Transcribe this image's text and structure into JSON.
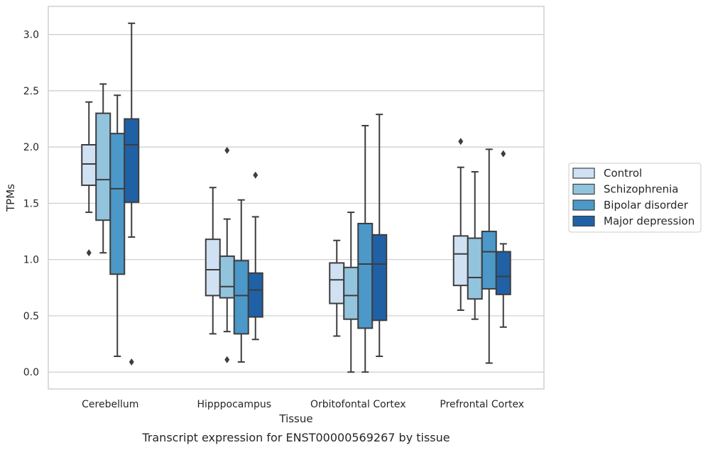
{
  "chart_data": {
    "type": "box",
    "caption": "Transcript expression for ENST00000569267 by tissue",
    "xlabel": "Tissue",
    "ylabel": "TPMs",
    "ylim": [
      -0.15,
      3.25
    ],
    "yticks": [
      "0.0",
      "0.5",
      "1.0",
      "1.5",
      "2.0",
      "2.5",
      "3.0"
    ],
    "grid": "horizontal",
    "legend_position": "right",
    "categories": [
      "Cerebellum",
      "Hipppocampus",
      "Orbitofontal Cortex",
      "Prefrontal Cortex"
    ],
    "series": [
      {
        "name": "Control",
        "color": "#cfe1f2",
        "boxes": [
          {
            "whisker_low": 1.42,
            "q1": 1.66,
            "median": 1.85,
            "q3": 2.02,
            "whisker_high": 2.4,
            "outliers": [
              1.06
            ]
          },
          {
            "whisker_low": 0.34,
            "q1": 0.68,
            "median": 0.91,
            "q3": 1.18,
            "whisker_high": 1.64,
            "outliers": []
          },
          {
            "whisker_low": 0.32,
            "q1": 0.61,
            "median": 0.82,
            "q3": 0.97,
            "whisker_high": 1.17,
            "outliers": []
          },
          {
            "whisker_low": 0.55,
            "q1": 0.77,
            "median": 1.05,
            "q3": 1.21,
            "whisker_high": 1.82,
            "outliers": [
              2.05
            ]
          }
        ]
      },
      {
        "name": "Schizophrenia",
        "color": "#93c4de",
        "boxes": [
          {
            "whisker_low": 1.06,
            "q1": 1.35,
            "median": 1.71,
            "q3": 2.3,
            "whisker_high": 2.56,
            "outliers": []
          },
          {
            "whisker_low": 0.36,
            "q1": 0.66,
            "median": 0.76,
            "q3": 1.03,
            "whisker_high": 1.36,
            "outliers": [
              1.97,
              0.11
            ]
          },
          {
            "whisker_low": 0.0,
            "q1": 0.47,
            "median": 0.68,
            "q3": 0.93,
            "whisker_high": 1.42,
            "outliers": []
          },
          {
            "whisker_low": 0.47,
            "q1": 0.65,
            "median": 0.84,
            "q3": 1.19,
            "whisker_high": 1.78,
            "outliers": []
          }
        ]
      },
      {
        "name": "Bipolar disorder",
        "color": "#4b98c9",
        "boxes": [
          {
            "whisker_low": 0.14,
            "q1": 0.87,
            "median": 1.63,
            "q3": 2.12,
            "whisker_high": 2.46,
            "outliers": []
          },
          {
            "whisker_low": 0.09,
            "q1": 0.34,
            "median": 0.68,
            "q3": 0.99,
            "whisker_high": 1.53,
            "outliers": []
          },
          {
            "whisker_low": 0.0,
            "q1": 0.39,
            "median": 0.96,
            "q3": 1.32,
            "whisker_high": 2.19,
            "outliers": []
          },
          {
            "whisker_low": 0.08,
            "q1": 0.74,
            "median": 1.07,
            "q3": 1.25,
            "whisker_high": 1.98,
            "outliers": []
          }
        ]
      },
      {
        "name": "Major depression",
        "color": "#2061a6",
        "boxes": [
          {
            "whisker_low": 1.2,
            "q1": 1.51,
            "median": 2.02,
            "q3": 2.25,
            "whisker_high": 3.1,
            "outliers": [
              0.09
            ]
          },
          {
            "whisker_low": 0.29,
            "q1": 0.49,
            "median": 0.73,
            "q3": 0.88,
            "whisker_high": 1.38,
            "outliers": [
              1.75
            ]
          },
          {
            "whisker_low": 0.14,
            "q1": 0.46,
            "median": 0.96,
            "q3": 1.22,
            "whisker_high": 2.29,
            "outliers": []
          },
          {
            "whisker_low": 0.4,
            "q1": 0.69,
            "median": 0.85,
            "q3": 1.07,
            "whisker_high": 1.14,
            "outliers": [
              1.94
            ]
          }
        ]
      }
    ]
  }
}
